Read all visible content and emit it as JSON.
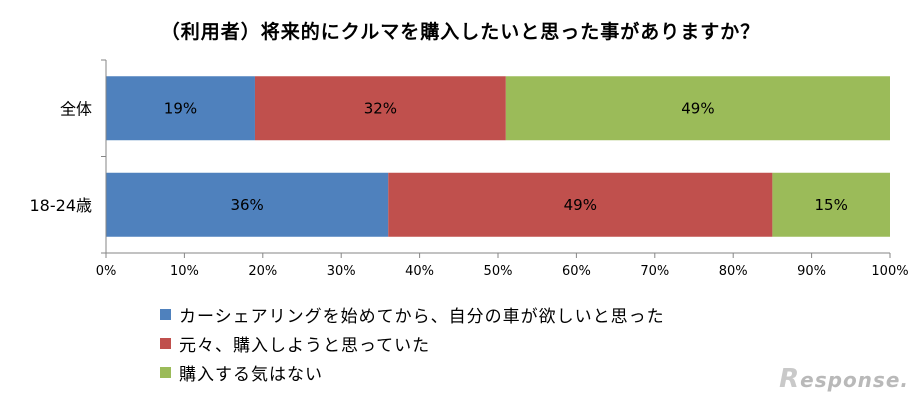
{
  "chart_data": {
    "type": "bar",
    "orientation": "horizontal",
    "stacked": true,
    "title": "（利用者）将来的にクルマを購入したいと思った事がありますか？",
    "categories": [
      "全体",
      "18-24歳"
    ],
    "series": [
      {
        "name": "カーシェアリングを始めてから、自分の車が欲しいと思った",
        "color": "#4F81BD",
        "values": [
          19,
          36
        ]
      },
      {
        "name": "元々、購入しようと思っていた",
        "color": "#C0504D",
        "values": [
          32,
          49
        ]
      },
      {
        "name": "購入する気はない",
        "color": "#9BBB59",
        "values": [
          49,
          15
        ]
      }
    ],
    "data_labels": [
      [
        "19%",
        "36%"
      ],
      [
        "32%",
        "49%"
      ],
      [
        "49%",
        "15%"
      ]
    ],
    "xlim": [
      0,
      100
    ],
    "xticks": [
      "0%",
      "10%",
      "20%",
      "30%",
      "40%",
      "50%",
      "60%",
      "70%",
      "80%",
      "90%",
      "100%"
    ],
    "grid": false,
    "legend_position": "bottom"
  },
  "watermark": {
    "mark": "R",
    "text": "esponse."
  }
}
